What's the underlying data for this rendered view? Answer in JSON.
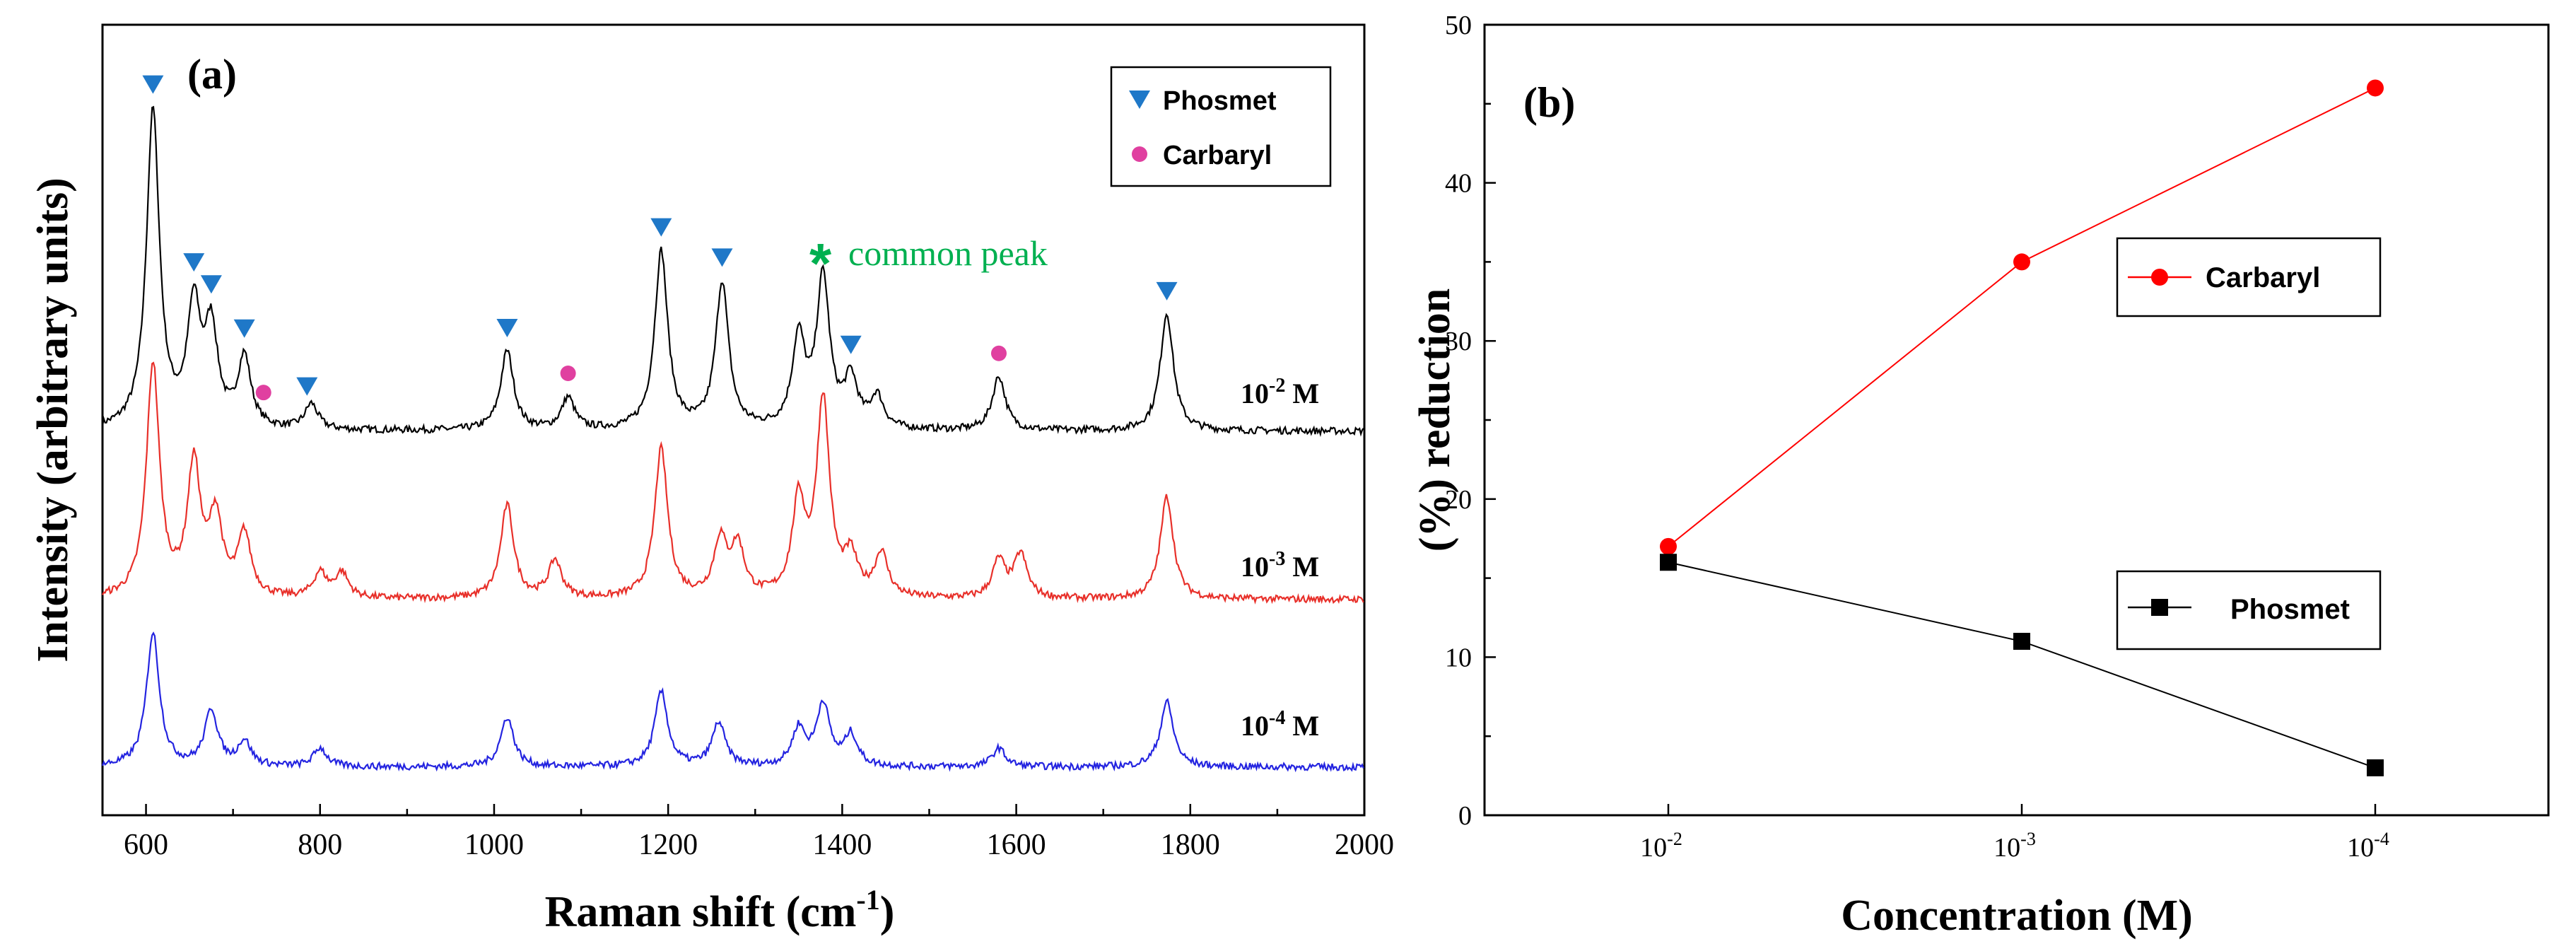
{
  "chart_data": [
    {
      "type": "line",
      "panel_label": "(a)",
      "xlabel_main": "Raman shift (cm",
      "xlabel_sup": "-1",
      "xlabel_end": ")",
      "ylabel": "Intensity (arbitrary units)",
      "xlim": [
        550,
        2000
      ],
      "xticks": [
        "600",
        "800",
        "1000",
        "1200",
        "1400",
        "1600",
        "1800",
        "2000"
      ],
      "xtick_values": [
        600,
        800,
        1000,
        1200,
        1400,
        1600,
        1800,
        2000
      ],
      "legend": [
        {
          "label": "Phosmet",
          "marker": "triangle-down",
          "color": "#1f78c8"
        },
        {
          "label": "Carbaryl",
          "marker": "circle",
          "color": "#e040a0"
        }
      ],
      "annotation": {
        "symbol": "*",
        "text": "common peak",
        "color": "#00b050"
      },
      "series": [
        {
          "name": "10-2 M",
          "label_base": "10",
          "label_sup": "-2",
          "label_unit": " M",
          "color": "#000000",
          "peaks": [
            [
              608,
              1.0
            ],
            [
              655,
              0.37
            ],
            [
              675,
              0.3
            ],
            [
              713,
              0.22
            ],
            [
              790,
              0.08
            ],
            [
              1015,
              0.25
            ],
            [
              1085,
              0.1
            ],
            [
              1192,
              0.56
            ],
            [
              1262,
              0.46
            ],
            [
              1350,
              0.28
            ],
            [
              1378,
              0.47
            ],
            [
              1410,
              0.15
            ],
            [
              1440,
              0.1
            ],
            [
              1580,
              0.17
            ],
            [
              1773,
              0.37
            ]
          ]
        },
        {
          "name": "10-3 M",
          "label_base": "10",
          "label_sup": "-3",
          "label_unit": " M",
          "color": "#e8302a",
          "peaks": [
            [
              608,
              0.75
            ],
            [
              655,
              0.42
            ],
            [
              680,
              0.25
            ],
            [
              713,
              0.2
            ],
            [
              800,
              0.08
            ],
            [
              825,
              0.08
            ],
            [
              1015,
              0.3
            ],
            [
              1070,
              0.12
            ],
            [
              1192,
              0.48
            ],
            [
              1260,
              0.18
            ],
            [
              1280,
              0.16
            ],
            [
              1350,
              0.3
            ],
            [
              1378,
              0.63
            ],
            [
              1410,
              0.12
            ],
            [
              1445,
              0.14
            ],
            [
              1580,
              0.12
            ],
            [
              1605,
              0.14
            ],
            [
              1773,
              0.33
            ]
          ]
        },
        {
          "name": "10-4 M",
          "label_base": "10",
          "label_sup": "-4",
          "label_unit": " M",
          "color": "#2424e0",
          "peaks": [
            [
              608,
              0.43
            ],
            [
              675,
              0.18
            ],
            [
              713,
              0.08
            ],
            [
              800,
              0.06
            ],
            [
              1015,
              0.16
            ],
            [
              1192,
              0.24
            ],
            [
              1258,
              0.14
            ],
            [
              1350,
              0.12
            ],
            [
              1378,
              0.2
            ],
            [
              1410,
              0.1
            ],
            [
              1580,
              0.06
            ],
            [
              1773,
              0.21
            ]
          ]
        }
      ],
      "phosmet_markers": [
        {
          "x": 608,
          "series": 0
        },
        {
          "x": 655,
          "series": 0
        },
        {
          "x": 675,
          "series": 0
        },
        {
          "x": 713,
          "series": 0
        },
        {
          "x": 785,
          "series": 0
        },
        {
          "x": 1015,
          "series": 0
        },
        {
          "x": 1192,
          "series": 0
        },
        {
          "x": 1262,
          "series": 0
        },
        {
          "x": 1410,
          "series": 0
        },
        {
          "x": 1773,
          "series": 0
        }
      ],
      "carbaryl_markers": [
        {
          "x": 735,
          "series": 0
        },
        {
          "x": 1085,
          "series": 0
        },
        {
          "x": 1580,
          "series": 0
        }
      ],
      "common_peak_x": 1378
    },
    {
      "type": "line",
      "panel_label": "(b)",
      "xlabel": "Concentration (M)",
      "ylabel": "(%) reduction",
      "ylim": [
        0,
        50
      ],
      "yticks": [
        "0",
        "10",
        "20",
        "30",
        "40",
        "50"
      ],
      "ytick_values": [
        0,
        10,
        20,
        30,
        40,
        50
      ],
      "categories": [
        {
          "base": "10",
          "sup": "-2"
        },
        {
          "base": "10",
          "sup": "-3"
        },
        {
          "base": "10",
          "sup": "-4"
        }
      ],
      "series": [
        {
          "name": "Carbaryl",
          "color": "#ff0000",
          "marker": "circle",
          "values": [
            17,
            35,
            46
          ]
        },
        {
          "name": "Phosmet",
          "color": "#000000",
          "marker": "square",
          "values": [
            16,
            11,
            3
          ]
        }
      ]
    }
  ]
}
